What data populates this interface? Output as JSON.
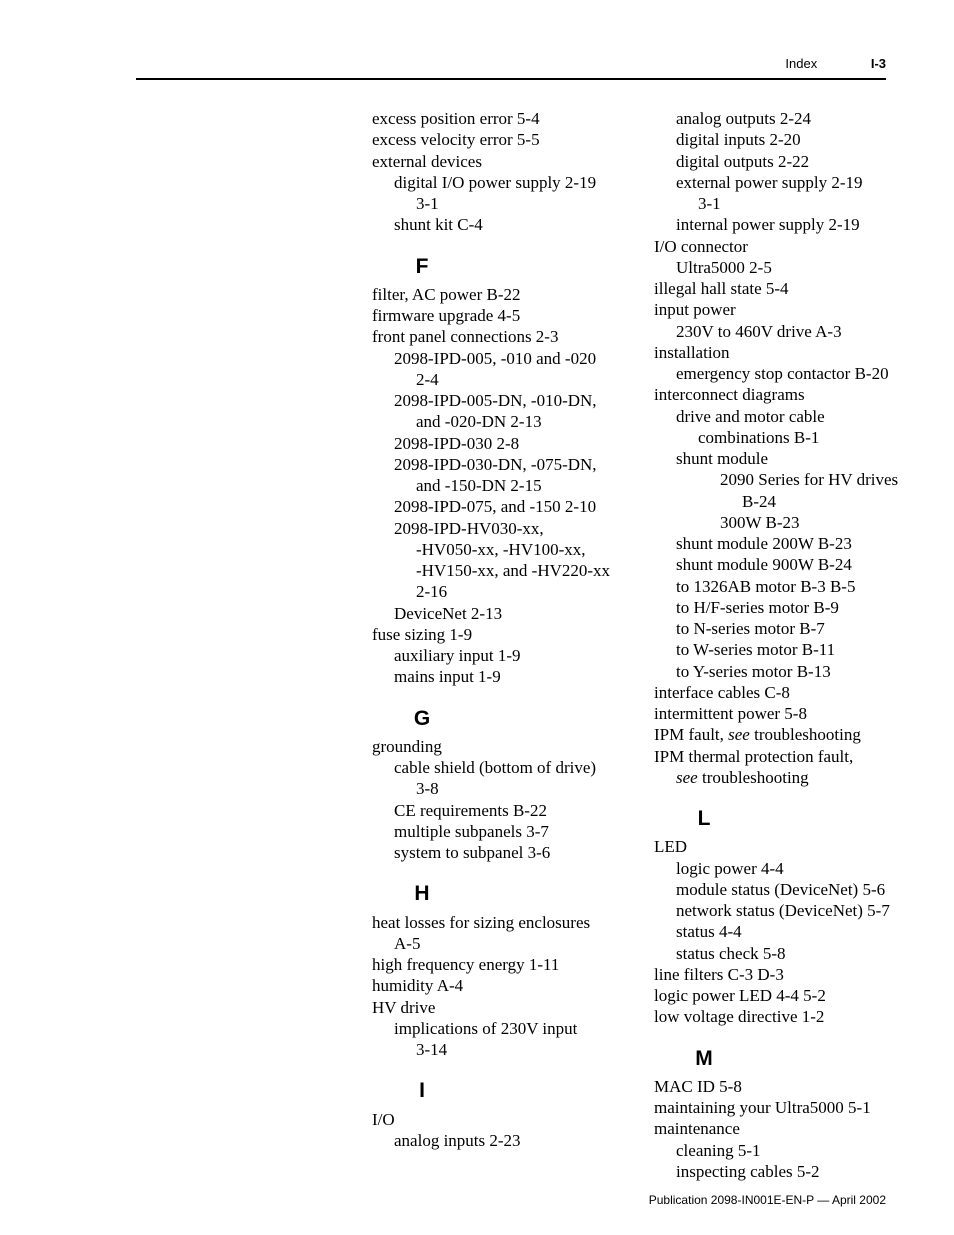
{
  "header": {
    "section": "Index",
    "page": "I-3"
  },
  "footer": "Publication 2098-IN001E-EN-P — April 2002",
  "left": {
    "pre": [
      {
        "t": "excess position error 5-4",
        "l": 0
      },
      {
        "t": "excess velocity error 5-5",
        "l": 0
      },
      {
        "t": "external devices",
        "l": 0
      },
      {
        "t": "digital I/O power supply 2-19",
        "l": 1
      },
      {
        "t": "3-1",
        "l": 2
      },
      {
        "t": "shunt kit C-4",
        "l": 1
      }
    ],
    "F": [
      {
        "t": "filter, AC power B-22",
        "l": 0
      },
      {
        "t": "firmware upgrade 4-5",
        "l": 0
      },
      {
        "t": "front panel connections 2-3",
        "l": 0
      },
      {
        "t": "2098-IPD-005, -010 and -020",
        "l": 1
      },
      {
        "t": "2-4",
        "l": 2
      },
      {
        "t": "2098-IPD-005-DN, -010-DN,",
        "l": 1
      },
      {
        "t": "and -020-DN 2-13",
        "l": 2
      },
      {
        "t": "2098-IPD-030 2-8",
        "l": 1
      },
      {
        "t": "2098-IPD-030-DN, -075-DN,",
        "l": 1
      },
      {
        "t": "and -150-DN 2-15",
        "l": 2
      },
      {
        "t": "2098-IPD-075, and -150 2-10",
        "l": 1
      },
      {
        "t": "2098-IPD-HV030-xx,",
        "l": 1
      },
      {
        "t": "-HV050-xx, -HV100-xx,",
        "l": 2
      },
      {
        "t": "-HV150-xx, and -HV220-xx",
        "l": 2
      },
      {
        "t": "2-16",
        "l": 2
      },
      {
        "t": "DeviceNet 2-13",
        "l": 1
      },
      {
        "t": "fuse sizing 1-9",
        "l": 0
      },
      {
        "t": "auxiliary input 1-9",
        "l": 1
      },
      {
        "t": "mains input 1-9",
        "l": 1
      }
    ],
    "G": [
      {
        "t": "grounding",
        "l": 0
      },
      {
        "t": "cable shield (bottom of drive)",
        "l": 1
      },
      {
        "t": "3-8",
        "l": 2
      },
      {
        "t": "CE requirements B-22",
        "l": 1
      },
      {
        "t": "multiple subpanels 3-7",
        "l": 1
      },
      {
        "t": "system to subpanel 3-6",
        "l": 1
      }
    ],
    "H": [
      {
        "t": "heat losses for sizing enclosures",
        "l": 0
      },
      {
        "t": "A-5",
        "l": 1
      },
      {
        "t": "high frequency energy 1-11",
        "l": 0
      },
      {
        "t": "humidity A-4",
        "l": 0
      },
      {
        "t": "HV drive",
        "l": 0
      },
      {
        "t": "implications of 230V input",
        "l": 1
      },
      {
        "t": "3-14",
        "l": 2
      }
    ],
    "I": [
      {
        "t": "I/O",
        "l": 0
      },
      {
        "t": "analog inputs 2-23",
        "l": 1
      }
    ]
  },
  "right": {
    "pre": [
      {
        "t": "analog outputs 2-24",
        "l": 1
      },
      {
        "t": "digital inputs 2-20",
        "l": 1
      },
      {
        "t": "digital outputs 2-22",
        "l": 1
      },
      {
        "t": "external power supply 2-19",
        "l": 1
      },
      {
        "t": "3-1",
        "l": 2
      },
      {
        "t": "internal power supply 2-19",
        "l": 1
      },
      {
        "t": "I/O connector",
        "l": 0
      },
      {
        "t": "Ultra5000 2-5",
        "l": 1
      },
      {
        "t": "illegal hall state 5-4",
        "l": 0
      },
      {
        "t": "input power",
        "l": 0
      },
      {
        "t": "230V to 460V drive A-3",
        "l": 1
      },
      {
        "t": "installation",
        "l": 0
      },
      {
        "t": "emergency stop contactor B-20",
        "l": 1
      },
      {
        "t": "interconnect diagrams",
        "l": 0
      },
      {
        "t": "drive and motor cable",
        "l": 1
      },
      {
        "t": "combinations B-1",
        "l": 2
      },
      {
        "t": "shunt module",
        "l": 1
      },
      {
        "t": "2090 Series for HV drives",
        "l": 3
      },
      {
        "t": "B-24",
        "l": 4
      },
      {
        "t": "300W B-23",
        "l": 3
      },
      {
        "t": "shunt module 200W B-23",
        "l": 1
      },
      {
        "t": "shunt module 900W B-24",
        "l": 1
      },
      {
        "t": "to 1326AB motor B-3  B-5",
        "l": 1
      },
      {
        "t": "to H/F-series motor B-9",
        "l": 1
      },
      {
        "t": "to N-series motor B-7",
        "l": 1
      },
      {
        "t": "to W-series motor B-11",
        "l": 1
      },
      {
        "t": "to Y-series motor B-13",
        "l": 1
      },
      {
        "t": "interface cables C-8",
        "l": 0
      },
      {
        "t": "intermittent power 5-8",
        "l": 0
      },
      {
        "pre": "IPM fault, ",
        "it": "see",
        "post": " troubleshooting",
        "l": 0
      },
      {
        "t": "IPM thermal protection fault,",
        "l": 0
      },
      {
        "it": "see",
        "post": " troubleshooting",
        "l": 1
      }
    ],
    "L": [
      {
        "t": "LED",
        "l": 0
      },
      {
        "t": "logic power 4-4",
        "l": 1
      },
      {
        "t": "module status (DeviceNet) 5-6",
        "l": 1
      },
      {
        "t": "network status (DeviceNet) 5-7",
        "l": 1
      },
      {
        "t": "status 4-4",
        "l": 1
      },
      {
        "t": "status check 5-8",
        "l": 1
      },
      {
        "t": "line filters C-3  D-3",
        "l": 0
      },
      {
        "t": "logic power LED 4-4  5-2",
        "l": 0
      },
      {
        "t": "low voltage directive 1-2",
        "l": 0
      }
    ],
    "M": [
      {
        "t": "MAC ID 5-8",
        "l": 0
      },
      {
        "t": "maintaining your Ultra5000 5-1",
        "l": 0
      },
      {
        "t": "maintenance",
        "l": 0
      },
      {
        "t": "cleaning 5-1",
        "l": 1
      },
      {
        "t": "inspecting cables 5-2",
        "l": 1
      }
    ]
  },
  "letters": {
    "F": "F",
    "G": "G",
    "H": "H",
    "I": "I",
    "L": "L",
    "M": "M"
  }
}
